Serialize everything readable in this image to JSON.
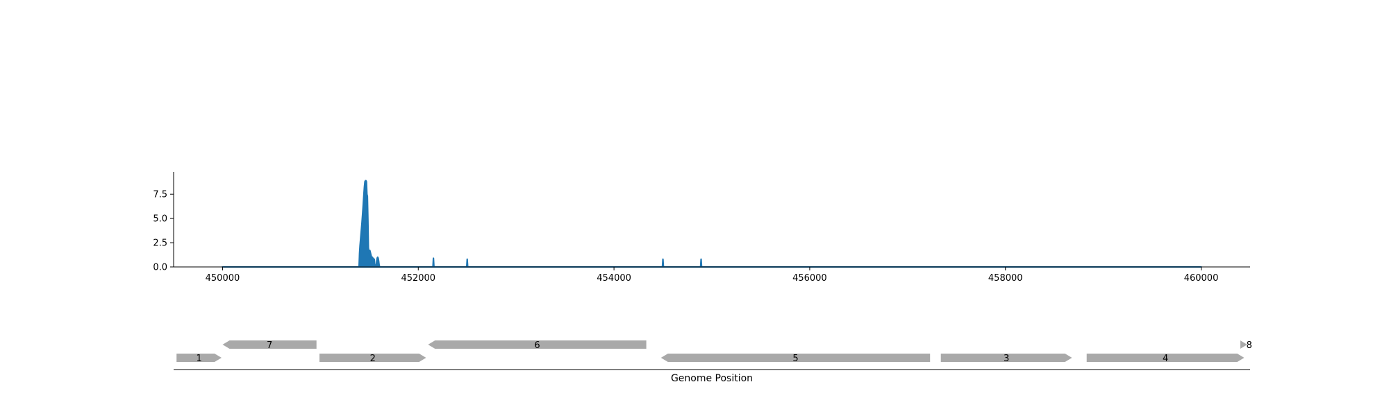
{
  "chart_data": [
    {
      "type": "area",
      "title": "",
      "xlabel": "",
      "ylabel": "",
      "xlim": [
        449500,
        460500
      ],
      "ylim": [
        0,
        9.8
      ],
      "grid": false,
      "legend": "none",
      "color": "#1f77b4",
      "x_ticks": [
        "450000",
        "452000",
        "454000",
        "456000",
        "458000",
        "460000"
      ],
      "x_tick_values": [
        450000,
        452000,
        454000,
        456000,
        458000,
        460000
      ],
      "y_ticks": [
        "0.0",
        "2.5",
        "5.0",
        "7.5"
      ],
      "y_tick_values": [
        0,
        2.5,
        5,
        7.5
      ],
      "series": [
        {
          "x": [
            450000,
            451395,
            451400,
            451405,
            451410,
            451415,
            451420,
            451425,
            451430,
            451435,
            451440,
            451445,
            451450,
            451455,
            451460,
            451465,
            451470,
            451475,
            451480,
            451485,
            451490,
            451495,
            451500,
            451505,
            451510,
            451515,
            451520,
            451525,
            451530,
            451535,
            451540,
            451545,
            451550,
            451555,
            451560,
            451570,
            451575,
            451580,
            451585,
            451590,
            451595,
            451600,
            451605,
            451610,
            452150,
            452155,
            452160,
            452495,
            452500,
            452505,
            454495,
            454500,
            454505,
            454885,
            454890,
            454895,
            460000
          ],
          "y": [
            0,
            0,
            1.4,
            2.2,
            2.8,
            3.4,
            4.0,
            4.6,
            5.3,
            6.0,
            6.8,
            7.6,
            8.3,
            8.8,
            8.9,
            8.9,
            8.8,
            7.5,
            7.3,
            5.0,
            2.0,
            1.6,
            1.4,
            1.7,
            1.5,
            1.3,
            1.1,
            0.6,
            1.0,
            0.4,
            0.9,
            0.5,
            0.8,
            0.3,
            0.1,
            0,
            0.6,
            0.9,
            1.0,
            0.9,
            0.6,
            0.2,
            0,
            0,
            0,
            0.9,
            0,
            0,
            0.8,
            0,
            0,
            0.8,
            0,
            0,
            0.8,
            0,
            0
          ]
        }
      ]
    },
    {
      "type": "gene-track",
      "xlabel": "Genome Position",
      "feature_color": "#a9a9a9",
      "features": [
        {
          "label": "1",
          "start": 449530,
          "end": 449990,
          "strand": "+",
          "row": 0
        },
        {
          "label": "7",
          "start": 450000,
          "end": 450960,
          "strand": "-",
          "row": 1
        },
        {
          "label": "2",
          "start": 450990,
          "end": 452080,
          "strand": "+",
          "row": 0
        },
        {
          "label": "6",
          "start": 452100,
          "end": 454330,
          "strand": "-",
          "row": 1
        },
        {
          "label": "5",
          "start": 454480,
          "end": 457230,
          "strand": "-",
          "row": 0
        },
        {
          "label": "3",
          "start": 457340,
          "end": 458680,
          "strand": "+",
          "row": 0
        },
        {
          "label": "4",
          "start": 458830,
          "end": 460440,
          "strand": "+",
          "row": 0
        },
        {
          "label": "8",
          "start": 460400,
          "end": 460470,
          "strand": "+",
          "row": 1
        }
      ]
    }
  ]
}
